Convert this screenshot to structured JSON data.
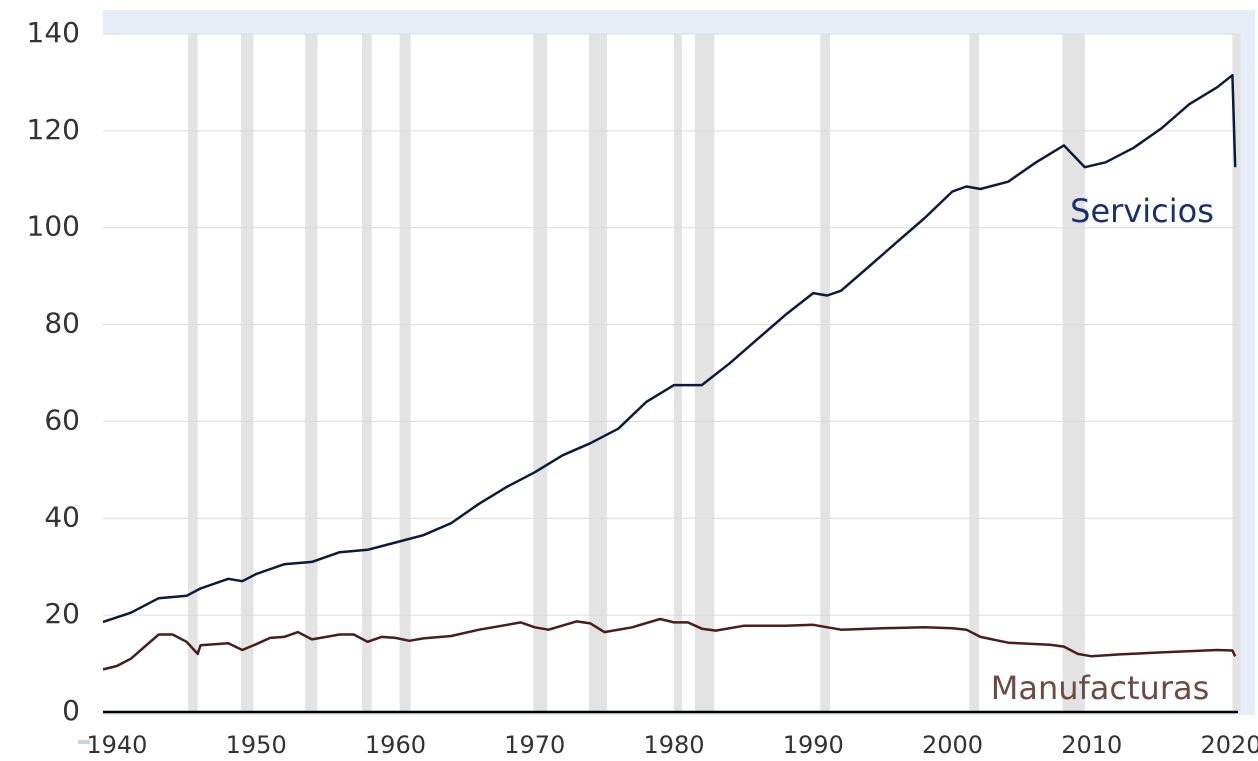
{
  "chart_data": {
    "type": "line",
    "xlim": [
      1939,
      2020.5
    ],
    "ylim": [
      0,
      140
    ],
    "xticks": [
      1940,
      1950,
      1960,
      1970,
      1980,
      1990,
      2000,
      2010,
      2020
    ],
    "yticks": [
      0,
      20,
      40,
      60,
      80,
      100,
      120,
      140
    ],
    "grid": true,
    "recessions": [
      [
        1945.1,
        1945.8
      ],
      [
        1948.9,
        1949.8
      ],
      [
        1953.5,
        1954.4
      ],
      [
        1957.6,
        1958.3
      ],
      [
        1960.3,
        1961.1
      ],
      [
        1969.9,
        1970.9
      ],
      [
        1973.9,
        1975.2
      ],
      [
        1980.0,
        1980.5
      ],
      [
        1981.5,
        1982.9
      ],
      [
        1990.5,
        1991.2
      ],
      [
        2001.2,
        2001.9
      ],
      [
        2007.9,
        2009.5
      ],
      [
        2020.1,
        2020.4
      ]
    ],
    "recession_color": "#e3e3e3",
    "annotations": [
      {
        "text": "Servicios",
        "color": "#1a2f6e"
      },
      {
        "text": "Manufacturas",
        "color": "#6e4a45"
      }
    ],
    "series": [
      {
        "name": "Servicios",
        "color": "#0d1a3c",
        "x": [
          1939,
          1941,
          1943,
          1945,
          1946,
          1948,
          1949,
          1950,
          1952,
          1954,
          1956,
          1958,
          1960,
          1962,
          1964,
          1966,
          1968,
          1970,
          1972,
          1974,
          1976,
          1978,
          1980,
          1982,
          1984,
          1986,
          1988,
          1990,
          1991,
          1992,
          1994,
          1996,
          1998,
          2000,
          2001,
          2002,
          2004,
          2006,
          2008,
          2009.5,
          2011,
          2013,
          2015,
          2017,
          2019,
          2020.1,
          2020.3
        ],
        "values": [
          18.6,
          20.5,
          23.5,
          24,
          25.5,
          27.5,
          27,
          28.5,
          30.5,
          31,
          33,
          33.5,
          35,
          36.5,
          39,
          43,
          46.5,
          49.5,
          53,
          55.5,
          58.5,
          64,
          67.5,
          67.5,
          72,
          77,
          82,
          86.5,
          86,
          87,
          92,
          97,
          102,
          107.5,
          108.5,
          108,
          109.5,
          113.5,
          117,
          112.5,
          113.5,
          116.5,
          120.5,
          125.5,
          129,
          131.5,
          112.5
        ]
      },
      {
        "name": "Manufacturas",
        "color": "#4a1c1c",
        "x": [
          1939,
          1940,
          1941,
          1942,
          1943,
          1944,
          1945,
          1945.8,
          1946,
          1948,
          1949,
          1950,
          1951,
          1952,
          1953,
          1954,
          1956,
          1957,
          1958,
          1959,
          1960,
          1961,
          1962,
          1964,
          1966,
          1967,
          1969,
          1970,
          1971,
          1973,
          1974,
          1975,
          1977,
          1979,
          1980,
          1981,
          1982,
          1983,
          1985,
          1988,
          1990,
          1992,
          1995,
          1998,
          2000,
          2001,
          2002,
          2004,
          2007,
          2008,
          2009,
          2010,
          2012,
          2015,
          2019,
          2020.1,
          2020.3
        ],
        "values": [
          8.8,
          9.5,
          11,
          13.5,
          16,
          16,
          14.5,
          12,
          13.8,
          14.2,
          12.8,
          14,
          15.3,
          15.5,
          16.5,
          15,
          16,
          16,
          14.5,
          15.5,
          15.3,
          14.7,
          15.2,
          15.7,
          17,
          17.5,
          18.5,
          17.5,
          17,
          18.7,
          18.3,
          16.5,
          17.5,
          19.2,
          18.5,
          18.5,
          17.2,
          16.8,
          17.8,
          17.8,
          18,
          17,
          17.3,
          17.5,
          17.3,
          17,
          15.5,
          14.3,
          13.9,
          13.5,
          12,
          11.5,
          11.9,
          12.3,
          12.8,
          12.7,
          11.5
        ]
      }
    ]
  }
}
